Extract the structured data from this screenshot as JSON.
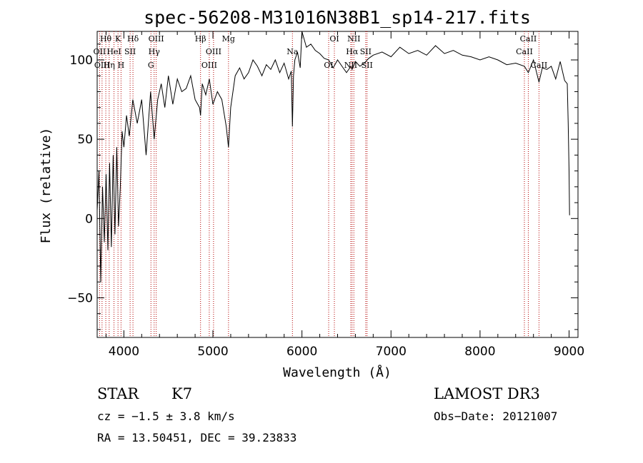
{
  "chart_data": {
    "type": "line",
    "title": "spec-56208-M31016N38B1_sp14-217.fits",
    "xlabel": "Wavelength (Å)",
    "ylabel": "Flux (relative)",
    "xlim": [
      3700,
      9100
    ],
    "ylim": [
      -75,
      118
    ],
    "x_ticks": [
      4000,
      5000,
      6000,
      7000,
      8000,
      9000
    ],
    "y_ticks": [
      -50,
      0,
      50,
      100
    ],
    "x_tick_labels": [
      "4000",
      "5000",
      "6000",
      "7000",
      "8000",
      "9000"
    ],
    "y_tick_labels": [
      "−50",
      "0",
      "50",
      "100"
    ],
    "spectrum": {
      "x": [
        3700,
        3720,
        3740,
        3760,
        3780,
        3800,
        3820,
        3840,
        3860,
        3880,
        3900,
        3920,
        3940,
        3960,
        3980,
        4000,
        4030,
        4060,
        4100,
        4150,
        4200,
        4250,
        4300,
        4340,
        4380,
        4420,
        4460,
        4500,
        4550,
        4600,
        4650,
        4700,
        4750,
        4800,
        4850,
        4861,
        4880,
        4920,
        4960,
        5000,
        5050,
        5100,
        5150,
        5175,
        5200,
        5250,
        5300,
        5350,
        5400,
        5450,
        5500,
        5550,
        5600,
        5650,
        5700,
        5750,
        5800,
        5850,
        5880,
        5893,
        5905,
        5920,
        5950,
        5980,
        6000,
        6050,
        6100,
        6150,
        6200,
        6250,
        6300,
        6350,
        6400,
        6450,
        6500,
        6550,
        6563,
        6600,
        6650,
        6700,
        6750,
        6800,
        6900,
        7000,
        7100,
        7200,
        7300,
        7400,
        7500,
        7600,
        7700,
        7800,
        7900,
        8000,
        8100,
        8200,
        8300,
        8400,
        8498,
        8542,
        8600,
        8662,
        8700,
        8750,
        8800,
        8850,
        8900,
        8950,
        8980,
        8990,
        9000,
        9005
      ],
      "y": [
        5,
        30,
        -40,
        20,
        -15,
        28,
        -20,
        35,
        -18,
        40,
        -10,
        45,
        -5,
        20,
        55,
        45,
        65,
        52,
        75,
        60,
        75,
        40,
        80,
        50,
        75,
        85,
        70,
        90,
        72,
        88,
        80,
        82,
        90,
        75,
        70,
        65,
        85,
        78,
        88,
        72,
        80,
        75,
        58,
        45,
        70,
        90,
        95,
        88,
        92,
        100,
        96,
        90,
        97,
        94,
        100,
        92,
        98,
        88,
        93,
        58,
        90,
        100,
        105,
        95,
        118,
        108,
        110,
        106,
        104,
        101,
        100,
        95,
        100,
        96,
        92,
        96,
        94,
        99,
        96,
        98,
        101,
        103,
        105,
        102,
        108,
        104,
        106,
        103,
        109,
        104,
        106,
        103,
        102,
        100,
        102,
        100,
        97,
        98,
        96,
        92,
        100,
        86,
        95,
        94,
        96,
        88,
        99,
        87,
        85,
        60,
        30,
        2
      ]
    },
    "lines": [
      {
        "label": "Hθ",
        "x": 3797
      },
      {
        "label": "OII",
        "x": 3727
      },
      {
        "label": "OIII",
        "x": 3755
      },
      {
        "label": "K",
        "x": 3934
      },
      {
        "label": "HeI",
        "x": 3889
      },
      {
        "label": "Hη",
        "x": 3835
      },
      {
        "label": "Hδ",
        "x": 4102
      },
      {
        "label": "SII",
        "x": 4070
      },
      {
        "label": "H",
        "x": 3968
      },
      {
        "label": "OIII",
        "x": 4363
      },
      {
        "label": "Hγ",
        "x": 4340
      },
      {
        "label": "G",
        "x": 4304
      },
      {
        "label": "Hβ",
        "x": 4861
      },
      {
        "label": "OIII",
        "x": 5007
      },
      {
        "label": "OIII",
        "x": 4959
      },
      {
        "label": "Mg",
        "x": 5175
      },
      {
        "label": "Na",
        "x": 5893
      },
      {
        "label": "OI",
        "x": 6300
      },
      {
        "label": "OI",
        "x": 6364
      },
      {
        "label": "Hα",
        "x": 6563
      },
      {
        "label": "NII",
        "x": 6548
      },
      {
        "label": "NII",
        "x": 6583
      },
      {
        "label": "SII",
        "x": 6716
      },
      {
        "label": "SII",
        "x": 6731
      },
      {
        "label": "CaII",
        "x": 8542
      },
      {
        "label": "CaII",
        "x": 8498
      },
      {
        "label": "CaII",
        "x": 8662
      }
    ],
    "line_color": "#000000",
    "marker_color": "#b30000"
  },
  "info": {
    "object_class": "STAR",
    "subclass": "K7",
    "survey": "LAMOST DR3",
    "redshift": "cz = −1.5 ± 3.8 km/s",
    "obs_date": "Obs−Date: 20121007",
    "coords": "RA =  13.50451, DEC =  39.23833"
  }
}
